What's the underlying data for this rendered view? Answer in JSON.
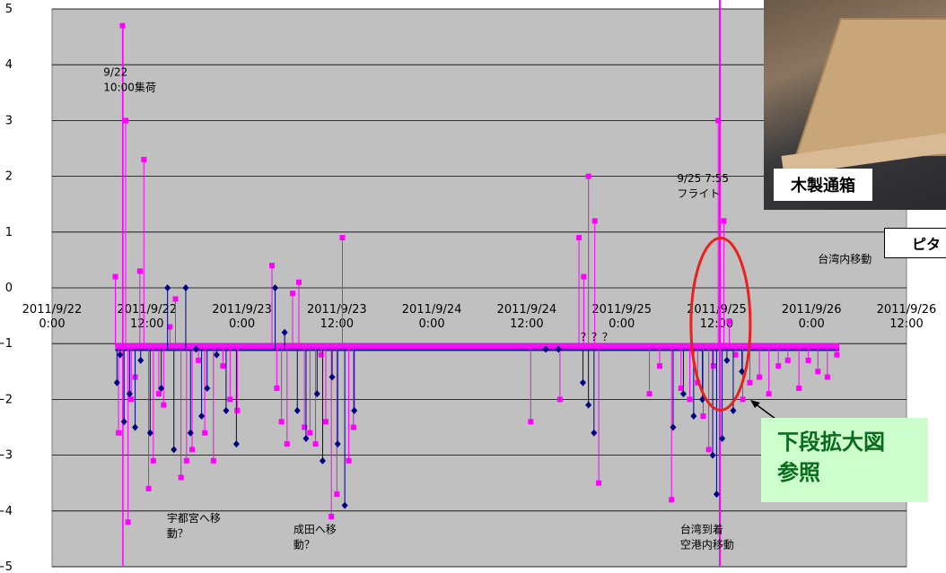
{
  "chart_data": {
    "type": "scatter",
    "ylim": [
      -5,
      5
    ],
    "yticks": [
      5,
      4,
      3,
      2,
      1,
      0,
      -1,
      -2,
      -3,
      -4,
      -5
    ],
    "xlim": [
      0,
      108
    ],
    "xticks": [
      {
        "x": 0,
        "line1": "2011/9/22",
        "line2": "0:00"
      },
      {
        "x": 12,
        "line1": "2011/9/22",
        "line2": "12:00"
      },
      {
        "x": 24,
        "line1": "2011/9/23",
        "line2": "0:00"
      },
      {
        "x": 36,
        "line1": "2011/9/23",
        "line2": "12:00"
      },
      {
        "x": 48,
        "line1": "2011/9/24",
        "line2": "0:00"
      },
      {
        "x": 60,
        "line1": "2011/9/24",
        "line2": "12:00"
      },
      {
        "x": 72,
        "line1": "2011/9/25",
        "line2": "0:00"
      },
      {
        "x": 84,
        "line1": "2011/9/25",
        "line2": "12:00"
      },
      {
        "x": 96,
        "line1": "2011/9/26",
        "line2": "0:00"
      },
      {
        "x": 108,
        "line1": "2011/9/26",
        "line2": "12:00"
      }
    ],
    "grid": "horizontal",
    "colors": {
      "plot_bg": "#c0c0c0",
      "series_dark": "#000080",
      "series_magenta": "#ff00ff",
      "ellipse": "#e8201e"
    },
    "series": [
      {
        "color": "#000080",
        "marker": "diamond",
        "x": [
          8.2,
          8.6,
          9.1,
          9.8,
          10.5,
          11.2,
          12.4,
          13.8,
          14.6,
          15.4,
          16.9,
          17.5,
          18.2,
          18.9,
          19.6,
          20.8,
          22.0,
          23.3,
          28.2,
          29.4,
          31.0,
          32.1,
          33.5,
          34.2,
          35.4,
          36.1,
          37.0,
          38.2,
          62.4,
          64.0,
          67.1,
          67.8,
          68.5,
          78.5,
          79.8,
          81.1,
          82.2,
          83.5,
          84.0,
          84.7,
          85.3,
          86.1,
          87.2
        ],
        "y": [
          -1.7,
          -1.2,
          -2.4,
          -1.9,
          -2.5,
          -1.3,
          -2.6,
          -1.8,
          0.0,
          -2.9,
          0.0,
          -2.6,
          -1.1,
          -2.3,
          -1.8,
          -1.2,
          -2.2,
          -2.8,
          0.0,
          -0.8,
          -2.2,
          -2.7,
          -1.9,
          -3.1,
          -1.6,
          -2.8,
          -3.9,
          -2.2,
          -1.1,
          -1.1,
          -1.7,
          -2.1,
          -2.6,
          -2.5,
          -1.9,
          -2.3,
          -2.0,
          -3.0,
          -3.7,
          -2.7,
          -1.3,
          -2.2,
          -1.5
        ],
        "baseline": -1.1
      },
      {
        "color": "#ff00ff",
        "marker": "square",
        "x": [
          8.0,
          8.4,
          8.9,
          9.3,
          9.6,
          10.0,
          10.5,
          11.1,
          11.6,
          12.2,
          12.8,
          13.5,
          14.1,
          14.9,
          15.6,
          16.3,
          17.0,
          17.7,
          18.5,
          19.3,
          20.4,
          21.6,
          22.5,
          23.4,
          27.8,
          28.4,
          29.0,
          29.7,
          30.4,
          31.2,
          31.9,
          32.6,
          33.3,
          34.0,
          34.6,
          35.3,
          36.0,
          36.7,
          37.5,
          38.1,
          60.5,
          64.2,
          66.6,
          67.2,
          67.8,
          68.6,
          69.1,
          75.5,
          76.8,
          78.3,
          79.5,
          80.6,
          81.6,
          82.3,
          83.0,
          83.6,
          84.2,
          84.9,
          85.6,
          86.4,
          87.3,
          88.2,
          89.4,
          90.6,
          91.8,
          93.0,
          94.4,
          95.6,
          96.8,
          98.0,
          99.2
        ],
        "y": [
          0.2,
          -2.6,
          4.7,
          3.0,
          -4.2,
          -2.0,
          -1.6,
          0.3,
          2.3,
          -3.6,
          -3.1,
          -1.9,
          -2.1,
          -0.7,
          -0.2,
          -3.4,
          -3.1,
          -2.9,
          -1.3,
          -2.6,
          -3.1,
          -1.4,
          -2.0,
          -2.2,
          0.4,
          -1.8,
          -2.4,
          -2.8,
          -0.1,
          0.1,
          -2.5,
          -2.6,
          -2.8,
          -1.2,
          -2.4,
          -4.1,
          -3.7,
          0.9,
          -3.1,
          -2.5,
          -2.4,
          -2.0,
          0.9,
          0.2,
          2.0,
          1.2,
          -3.5,
          -1.9,
          -1.4,
          -3.8,
          -1.8,
          -2.0,
          -1.7,
          -2.3,
          -2.9,
          -1.4,
          3.0,
          1.2,
          -0.6,
          -1.2,
          -2.0,
          -1.7,
          -1.6,
          -1.9,
          -1.4,
          -1.3,
          -1.8,
          -1.3,
          -1.5,
          -1.6,
          -1.2
        ],
        "baseline": -1.05
      }
    ],
    "annotations": {
      "collect": {
        "x": 6.5,
        "y": 3.8,
        "lines": [
          "9/22",
          "10:00集荷"
        ]
      },
      "utsunomiya": {
        "x": 14.5,
        "y": -4.2,
        "lines": [
          "宇都宮へ移",
          "動？"
        ]
      },
      "narita": {
        "x": 30.5,
        "y": -4.4,
        "lines": [
          "成田へ移",
          "動？"
        ]
      },
      "question": {
        "x": 66.8,
        "y": -0.95,
        "lines": [
          "？？？"
        ]
      },
      "flight": {
        "x": 79.0,
        "y": 1.9,
        "lines": [
          "9/25  7:55",
          "フライト"
        ]
      },
      "taiwan_move": {
        "x": 96.8,
        "y": 0.45,
        "lines": [
          "台湾内移動"
        ]
      },
      "arrival": {
        "x": 79.4,
        "y": -4.4,
        "lines": [
          "台湾到着",
          "空港内移動"
        ]
      }
    }
  },
  "overlays": {
    "photo_label": "木製通箱",
    "pita_label": "ピタ",
    "callout": "下段拡大図\n参照"
  }
}
